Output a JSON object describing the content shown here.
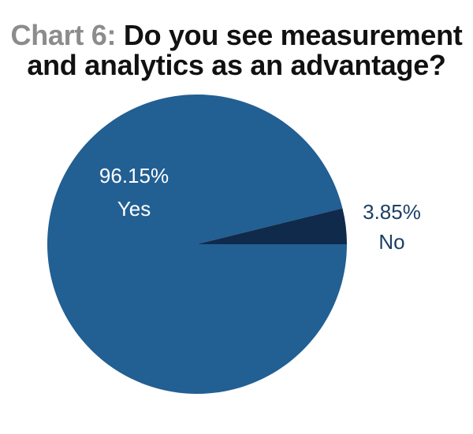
{
  "chart_data": {
    "type": "pie",
    "title_prefix": "Chart 6:",
    "title_line1": "Do you see measurement",
    "title_line2": "and analytics as an advantage?",
    "slices": [
      {
        "label": "Yes",
        "value": 96.15,
        "value_label": "96.15%",
        "color": "#225f93",
        "label_color": "#ffffff"
      },
      {
        "label": "No",
        "value": 3.85,
        "value_label": "3.85%",
        "color": "#0f2a4a",
        "label_color": "#1c3f66"
      }
    ]
  }
}
